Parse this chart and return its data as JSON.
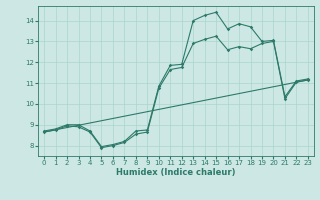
{
  "xlabel": "Humidex (Indice chaleur)",
  "bg_color": "#cde8e4",
  "grid_color": "#aad4ce",
  "line_color": "#2d7a6a",
  "xlim": [
    -0.5,
    23.5
  ],
  "ylim": [
    7.5,
    14.7
  ],
  "xticks": [
    0,
    1,
    2,
    3,
    4,
    5,
    6,
    7,
    8,
    9,
    10,
    11,
    12,
    13,
    14,
    15,
    16,
    17,
    18,
    19,
    20,
    21,
    22,
    23
  ],
  "yticks": [
    8,
    9,
    10,
    11,
    12,
    13,
    14
  ],
  "curve1_x": [
    0,
    1,
    2,
    3,
    4,
    5,
    6,
    7,
    8,
    9,
    10,
    11,
    12,
    13,
    14,
    15,
    16,
    17,
    18,
    19,
    20,
    21,
    22,
    23
  ],
  "curve1_y": [
    8.7,
    8.8,
    9.0,
    9.0,
    8.7,
    7.95,
    8.05,
    8.2,
    8.7,
    8.75,
    10.85,
    11.85,
    11.9,
    14.0,
    14.25,
    14.4,
    13.6,
    13.85,
    13.7,
    13.0,
    13.05,
    10.35,
    11.1,
    11.2
  ],
  "curve2_x": [
    0,
    1,
    2,
    3,
    4,
    5,
    6,
    7,
    8,
    9,
    10,
    11,
    12,
    13,
    14,
    15,
    16,
    17,
    18,
    19,
    20,
    21,
    22,
    23
  ],
  "curve2_y": [
    8.65,
    8.75,
    8.95,
    8.9,
    8.65,
    7.9,
    8.0,
    8.15,
    8.55,
    8.65,
    10.75,
    11.65,
    11.75,
    12.9,
    13.1,
    13.25,
    12.6,
    12.75,
    12.65,
    12.9,
    13.0,
    10.25,
    11.05,
    11.15
  ],
  "curve3_x": [
    0,
    23
  ],
  "curve3_y": [
    8.65,
    11.15
  ]
}
